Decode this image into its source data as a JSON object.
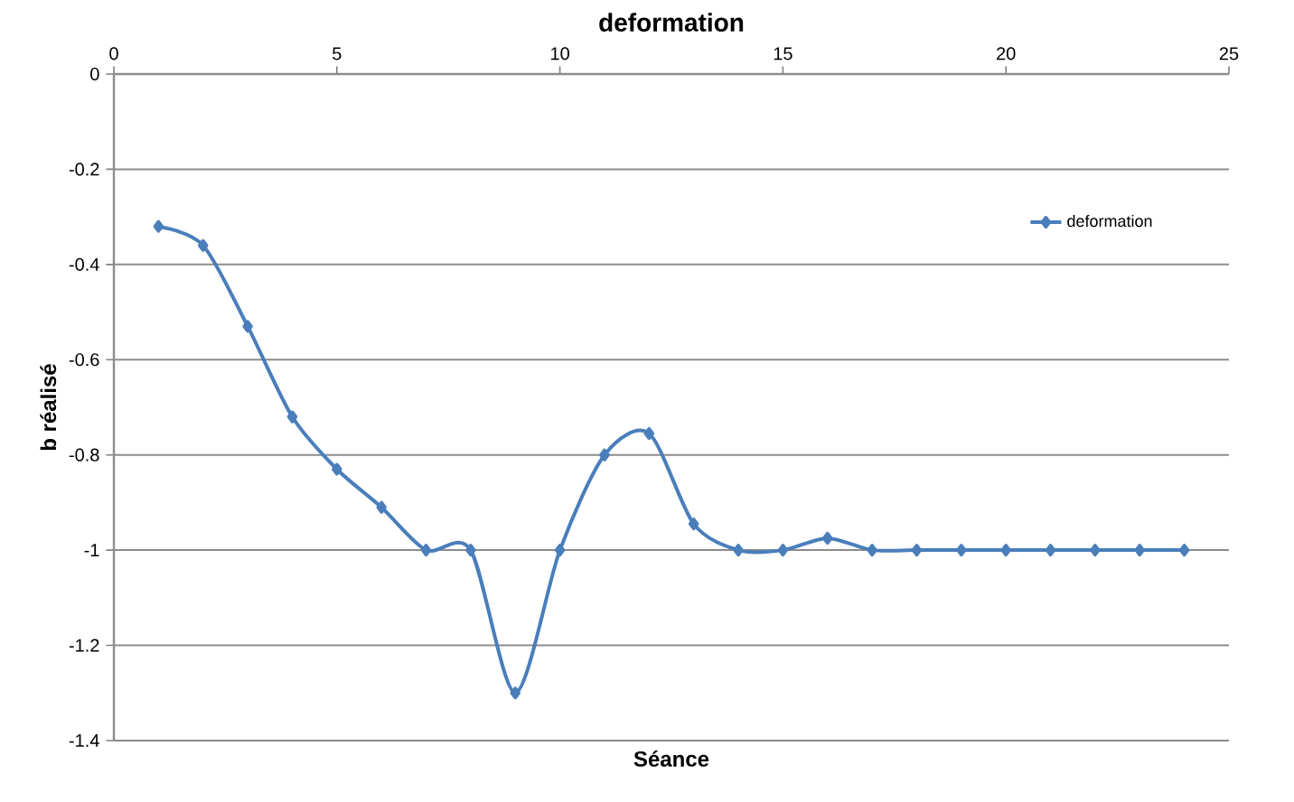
{
  "chart_data": {
    "type": "line",
    "title": "deformation",
    "xlabel": "Séance",
    "ylabel": "b réalisé",
    "x": [
      1,
      2,
      3,
      4,
      5,
      6,
      7,
      8,
      9,
      10,
      11,
      12,
      13,
      14,
      15,
      16,
      17,
      18,
      19,
      20,
      21,
      22,
      23,
      24
    ],
    "series": [
      {
        "name": "deformation",
        "color": "#4a7ebb",
        "values": [
          -0.32,
          -0.36,
          -0.53,
          -0.72,
          -0.83,
          -0.91,
          -1.0,
          -1.0,
          -1.3,
          -1.0,
          -0.8,
          -0.755,
          -0.945,
          -1.0,
          -1.0,
          -0.975,
          -1.0,
          -1.0,
          -1.0,
          -1.0,
          -1.0,
          -1.0,
          -1.0,
          -1.0
        ]
      }
    ],
    "xlim": [
      0,
      25
    ],
    "xticks": [
      0,
      5,
      10,
      15,
      20,
      25
    ],
    "ylim": [
      -1.4,
      0
    ],
    "yticks": [
      -1.4,
      -1.2,
      -1,
      -0.8,
      -0.6,
      -0.4,
      -0.2,
      0
    ],
    "grid": "y",
    "legend": "top right",
    "marker": "diamond",
    "line_style": "solid"
  }
}
